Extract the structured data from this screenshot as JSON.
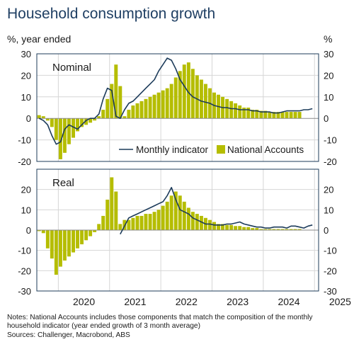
{
  "title": "Household consumption growth",
  "notes": [
    "Notes: National Accounts includes those components that match the composition of the monthly",
    "household indicator (year ended growth of 3 month average)",
    "Sources: Challenger, Macrobond, ABS"
  ],
  "colors": {
    "bar": "#b5bd00",
    "line": "#1c3b5a",
    "title": "#1f3f63",
    "grid": "#d6d6d6",
    "frame": "#1c3b5a"
  },
  "chart_data": [
    {
      "type": "bar+line",
      "panel_label": "Nominal",
      "ylabel_left": "%, year ended",
      "ylabel_right": "%",
      "ylim": [
        -20,
        30
      ],
      "yticks": [
        -20,
        -10,
        0,
        10,
        20,
        30
      ],
      "xlim": [
        2019.58,
        2025.08
      ],
      "xticks": [
        "2020",
        "2021",
        "2022",
        "2023",
        "2024",
        "2025"
      ],
      "legend": {
        "position": "bottom-right",
        "entries": [
          "Monthly indicator",
          "National Accounts"
        ]
      },
      "series": [
        {
          "name": "National Accounts",
          "kind": "bar",
          "x": [
            2019.625,
            2019.708,
            2019.792,
            2019.875,
            2019.958,
            2020.042,
            2020.125,
            2020.208,
            2020.292,
            2020.375,
            2020.458,
            2020.542,
            2020.625,
            2020.708,
            2020.792,
            2020.875,
            2020.958,
            2021.042,
            2021.125,
            2021.208,
            2021.292,
            2021.375,
            2021.458,
            2021.542,
            2021.625,
            2021.708,
            2021.792,
            2021.875,
            2021.958,
            2022.042,
            2022.125,
            2022.208,
            2022.292,
            2022.375,
            2022.458,
            2022.542,
            2022.625,
            2022.708,
            2022.792,
            2022.875,
            2022.958,
            2023.042,
            2023.125,
            2023.208,
            2023.292,
            2023.375,
            2023.458,
            2023.542,
            2023.625,
            2023.708,
            2023.792,
            2023.875,
            2023.958,
            2024.042,
            2024.125,
            2024.208,
            2024.292,
            2024.375,
            2024.458,
            2024.542,
            2024.625,
            2024.708
          ],
          "values": [
            1.5,
            1,
            -1,
            -4,
            -10,
            -19,
            -16,
            -12,
            -9,
            -6,
            -4,
            -3,
            -2,
            -1,
            1,
            4,
            9,
            16,
            25,
            15,
            1,
            4,
            6,
            7,
            8,
            9,
            10,
            11,
            12,
            13,
            14,
            16,
            19,
            22,
            25,
            26,
            23,
            20,
            18,
            16,
            14,
            12,
            11,
            10,
            9,
            8,
            7,
            6,
            5,
            5,
            4,
            4,
            3.5,
            3.5,
            3,
            3,
            3,
            3,
            3,
            3,
            3,
            3
          ]
        },
        {
          "name": "Monthly indicator",
          "kind": "line",
          "x": [
            2019.625,
            2019.708,
            2019.792,
            2019.875,
            2019.958,
            2020.042,
            2020.125,
            2020.208,
            2020.292,
            2020.375,
            2020.458,
            2020.542,
            2020.625,
            2020.708,
            2020.792,
            2020.875,
            2020.958,
            2021.042,
            2021.125,
            2021.208,
            2021.292,
            2021.375,
            2021.458,
            2021.542,
            2021.625,
            2021.708,
            2021.792,
            2021.875,
            2021.958,
            2022.042,
            2022.125,
            2022.208,
            2022.292,
            2022.375,
            2022.458,
            2022.542,
            2022.625,
            2022.708,
            2022.792,
            2022.875,
            2022.958,
            2023.042,
            2023.125,
            2023.208,
            2023.292,
            2023.375,
            2023.458,
            2023.542,
            2023.625,
            2023.708,
            2023.792,
            2023.875,
            2023.958,
            2024.042,
            2024.125,
            2024.208,
            2024.292,
            2024.375,
            2024.458,
            2024.542,
            2024.625,
            2024.708,
            2024.792,
            2024.875,
            2024.958
          ],
          "values": [
            0,
            -1,
            -3,
            -8,
            -12,
            -11,
            -5,
            -3,
            -4,
            -5,
            -3,
            -1,
            0,
            0,
            2,
            9,
            14,
            13,
            1,
            0,
            4,
            7,
            8,
            10,
            12,
            14,
            16,
            18,
            22,
            25,
            28,
            27,
            23,
            18,
            15,
            12,
            10,
            9,
            8,
            7.5,
            7,
            6,
            5.5,
            5,
            5,
            4.5,
            4.5,
            4,
            4,
            4,
            3.5,
            3.5,
            3,
            3,
            3,
            2.5,
            2.5,
            3,
            3.5,
            3.5,
            3.5,
            3.5,
            4,
            4,
            4.5
          ]
        }
      ]
    },
    {
      "type": "bar+line",
      "panel_label": "Real",
      "ylim": [
        -30,
        30
      ],
      "yticks": [
        -30,
        -20,
        -10,
        0,
        10,
        20,
        30
      ],
      "xlim": [
        2019.58,
        2025.08
      ],
      "xticks": [
        "2020",
        "2021",
        "2022",
        "2023",
        "2024",
        "2025"
      ],
      "series": [
        {
          "name": "National Accounts",
          "kind": "bar",
          "x": [
            2019.625,
            2019.708,
            2019.792,
            2019.875,
            2019.958,
            2020.042,
            2020.125,
            2020.208,
            2020.292,
            2020.375,
            2020.458,
            2020.542,
            2020.625,
            2020.708,
            2020.792,
            2020.875,
            2020.958,
            2021.042,
            2021.125,
            2021.208,
            2021.292,
            2021.375,
            2021.458,
            2021.542,
            2021.625,
            2021.708,
            2021.792,
            2021.875,
            2021.958,
            2022.042,
            2022.125,
            2022.208,
            2022.292,
            2022.375,
            2022.458,
            2022.542,
            2022.625,
            2022.708,
            2022.792,
            2022.875,
            2022.958,
            2023.042,
            2023.125,
            2023.208,
            2023.292,
            2023.375,
            2023.458,
            2023.542,
            2023.625,
            2023.708,
            2023.792,
            2023.875,
            2023.958,
            2024.042,
            2024.125,
            2024.208,
            2024.292,
            2024.375,
            2024.458,
            2024.542,
            2024.625,
            2024.708
          ],
          "values": [
            -0.5,
            -1.5,
            -9,
            -14,
            -22,
            -18,
            -15,
            -13,
            -11,
            -9,
            -7,
            -5,
            -3,
            -1,
            3,
            7,
            15,
            26,
            19,
            3,
            5,
            5,
            6,
            7,
            7,
            8,
            8,
            9,
            10,
            12,
            14,
            17,
            19,
            17,
            14,
            11,
            9,
            8,
            7,
            6,
            5,
            4,
            3,
            3,
            2.5,
            2.5,
            2,
            2,
            1.5,
            1.5,
            1,
            1,
            0.5,
            0.5,
            0.5,
            0.5,
            0.5,
            0.5,
            0.5,
            0.5,
            0.5,
            0.5
          ]
        },
        {
          "name": "Monthly indicator",
          "kind": "line",
          "x": [
            2021.208,
            2021.292,
            2021.375,
            2021.458,
            2021.542,
            2021.625,
            2021.708,
            2021.792,
            2021.875,
            2021.958,
            2022.042,
            2022.125,
            2022.208,
            2022.292,
            2022.375,
            2022.458,
            2022.542,
            2022.625,
            2022.708,
            2022.792,
            2022.875,
            2022.958,
            2023.042,
            2023.125,
            2023.208,
            2023.292,
            2023.375,
            2023.458,
            2023.542,
            2023.625,
            2023.708,
            2023.792,
            2023.875,
            2023.958,
            2024.042,
            2024.125,
            2024.208,
            2024.292,
            2024.375,
            2024.458,
            2024.542,
            2024.625,
            2024.708,
            2024.792,
            2024.875,
            2024.958
          ],
          "values": [
            -2,
            2,
            6,
            7,
            8,
            9,
            10,
            11,
            12,
            13,
            14,
            17,
            21,
            15,
            10,
            9,
            8,
            6,
            5,
            4,
            3,
            3,
            2.5,
            2.5,
            2.5,
            3,
            3,
            3.5,
            4,
            3,
            2.5,
            2,
            1.5,
            1.5,
            1,
            1,
            1.5,
            1.5,
            1.5,
            1,
            2,
            2,
            1.5,
            1,
            2,
            2.5
          ]
        }
      ]
    }
  ]
}
